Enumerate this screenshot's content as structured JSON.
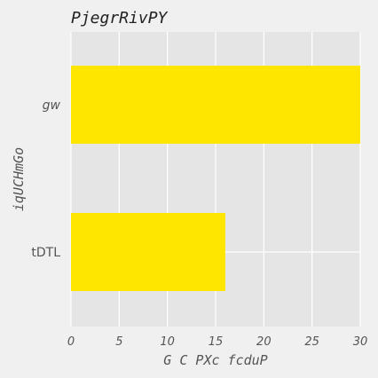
{
  "chart_data": {
    "type": "bar",
    "orientation": "horizontal",
    "title": "PjegrRivPY",
    "xlabel": "G C PXc fcduP",
    "ylabel": "iqUCHmGo",
    "categories": [
      "gw",
      "tDTL"
    ],
    "series": [
      {
        "values": [
          30,
          16
        ]
      }
    ],
    "xlim": [
      0,
      30
    ],
    "xticks": [
      "0",
      "5",
      "10",
      "15",
      "20",
      "25",
      "30"
    ],
    "grid": true,
    "colors": {
      "bar": "#ffe600",
      "plot_background": "#e5e5e5",
      "grid": "#ffffff",
      "page_background": "#f0f0f0"
    }
  }
}
